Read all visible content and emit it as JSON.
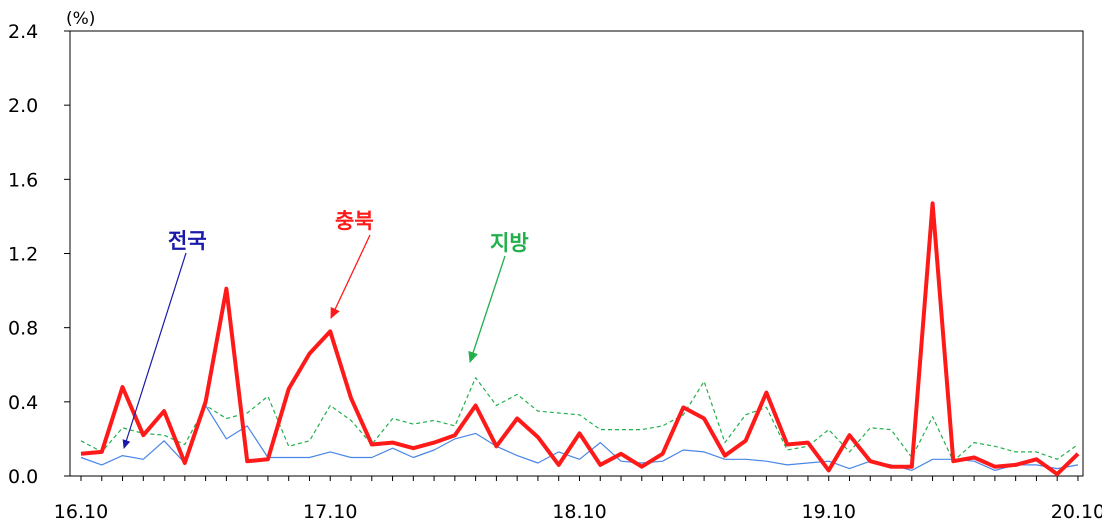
{
  "chart_data": {
    "type": "line",
    "unit_label": "(%)",
    "ylim": [
      0.0,
      2.4
    ],
    "y_ticks": [
      "0.0",
      "0.4",
      "0.8",
      "1.2",
      "1.6",
      "2.0",
      "2.4"
    ],
    "x_tick_labels": [
      {
        "label": "16.10",
        "index": 0
      },
      {
        "label": "17.10",
        "index": 12
      },
      {
        "label": "18.10",
        "index": 24
      },
      {
        "label": "19.10",
        "index": 36
      },
      {
        "label": "20.10",
        "index": 48
      }
    ],
    "grid": false,
    "series": [
      {
        "name": "전국",
        "color": "#4a86e8",
        "style": "thin-solid",
        "values": [
          0.1,
          0.06,
          0.11,
          0.09,
          0.19,
          0.07,
          0.38,
          0.2,
          0.27,
          0.1,
          0.1,
          0.1,
          0.13,
          0.1,
          0.1,
          0.15,
          0.1,
          0.14,
          0.2,
          0.23,
          0.16,
          0.11,
          0.07,
          0.13,
          0.09,
          0.18,
          0.08,
          0.07,
          0.08,
          0.14,
          0.13,
          0.09,
          0.09,
          0.08,
          0.06,
          0.07,
          0.08,
          0.04,
          0.08,
          0.06,
          0.03,
          0.09,
          0.09,
          0.08,
          0.03,
          0.06,
          0.06,
          0.04,
          0.06
        ]
      },
      {
        "name": "충북",
        "color": "#ff1a1a",
        "style": "thick-solid",
        "values": [
          0.12,
          0.13,
          0.48,
          0.22,
          0.35,
          0.07,
          0.4,
          1.01,
          0.08,
          0.09,
          0.47,
          0.66,
          0.78,
          0.42,
          0.17,
          0.18,
          0.15,
          0.18,
          0.22,
          0.38,
          0.16,
          0.31,
          0.21,
          0.06,
          0.23,
          0.06,
          0.12,
          0.05,
          0.12,
          0.37,
          0.31,
          0.11,
          0.19,
          0.45,
          0.17,
          0.18,
          0.03,
          0.22,
          0.08,
          0.05,
          0.05,
          1.47,
          0.08,
          0.1,
          0.05,
          0.06,
          0.09,
          0.01,
          0.12
        ]
      },
      {
        "name": "지방",
        "color": "#22b04c",
        "style": "dashed",
        "values": [
          0.19,
          0.13,
          0.26,
          0.23,
          0.22,
          0.17,
          0.38,
          0.31,
          0.34,
          0.43,
          0.16,
          0.19,
          0.38,
          0.3,
          0.17,
          0.31,
          0.28,
          0.3,
          0.27,
          0.53,
          0.38,
          0.44,
          0.35,
          0.34,
          0.33,
          0.25,
          0.25,
          0.25,
          0.27,
          0.33,
          0.51,
          0.18,
          0.33,
          0.37,
          0.14,
          0.16,
          0.25,
          0.13,
          0.26,
          0.25,
          0.1,
          0.32,
          0.08,
          0.18,
          0.16,
          0.13,
          0.13,
          0.09,
          0.17
        ]
      }
    ],
    "annotations": [
      {
        "series": "전국"
      },
      {
        "series": "충북"
      },
      {
        "series": "지방"
      }
    ]
  }
}
